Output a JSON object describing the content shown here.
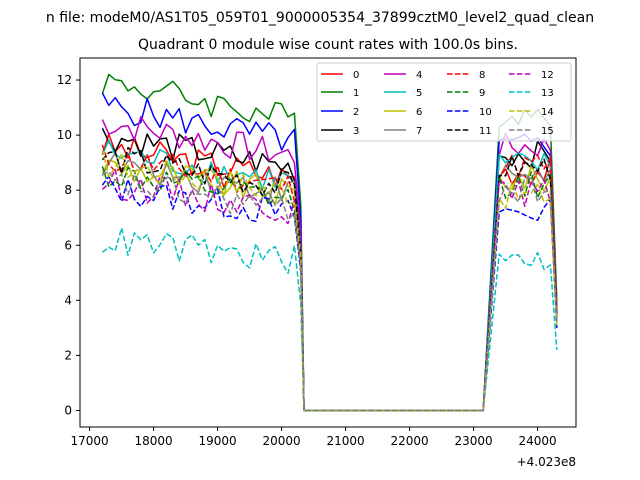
{
  "chart_data": {
    "type": "line",
    "suptitle": "n file: modeM0/AS1T05_059T01_9000005354_37899cztM0_level2_quad_clean",
    "title": "Quadrant 0 module wise count rates with 100.0s bins.",
    "xlabel": "",
    "ylabel": "",
    "x_offset_label": "+4.023e8",
    "xlim": [
      16850,
      24600
    ],
    "ylim": [
      -0.6,
      12.8
    ],
    "xticks": [
      17000,
      18000,
      19000,
      20000,
      21000,
      22000,
      23000,
      24000
    ],
    "yticks": [
      0,
      2,
      4,
      6,
      8,
      10,
      12
    ],
    "legend_location": "upper right",
    "legend_columns": 4,
    "series": [
      {
        "name": "0",
        "color": "#ff0000",
        "dash": "solid",
        "base_on": 9.6,
        "base_tail": 8.7,
        "tail_end": 3.5
      },
      {
        "name": "1",
        "color": "#008000",
        "dash": "solid",
        "base_on": 12.0,
        "base_tail": 10.8,
        "tail_end": 4.0
      },
      {
        "name": "2",
        "color": "#0000ff",
        "dash": "solid",
        "base_on": 11.1,
        "base_tail": 9.6,
        "tail_end": 3.6
      },
      {
        "name": "3",
        "color": "#000000",
        "dash": "solid",
        "base_on": 10.0,
        "base_tail": 9.3,
        "tail_end": 3.6
      },
      {
        "name": "4",
        "color": "#bf00bf",
        "dash": "solid",
        "base_on": 10.5,
        "base_tail": 9.6,
        "tail_end": 3.7
      },
      {
        "name": "5",
        "color": "#00bfbf",
        "dash": "solid",
        "base_on": 9.4,
        "base_tail": 8.9,
        "tail_end": 3.4
      },
      {
        "name": "6",
        "color": "#bfbf00",
        "dash": "solid",
        "base_on": 8.9,
        "base_tail": 8.4,
        "tail_end": 3.3
      },
      {
        "name": "7",
        "color": "#808080",
        "dash": "solid",
        "base_on": 9.0,
        "base_tail": 8.6,
        "tail_end": 3.3
      },
      {
        "name": "8",
        "color": "#ff0000",
        "dash": "dashed",
        "base_on": 9.2,
        "base_tail": 8.9,
        "tail_end": 3.4
      },
      {
        "name": "9",
        "color": "#008000",
        "dash": "dashed",
        "base_on": 8.6,
        "base_tail": 8.2,
        "tail_end": 3.2
      },
      {
        "name": "10",
        "color": "#0000ff",
        "dash": "dashed",
        "base_on": 8.1,
        "base_tail": 7.2,
        "tail_end": 3.0
      },
      {
        "name": "11",
        "color": "#000000",
        "dash": "dashed",
        "base_on": 9.2,
        "base_tail": 8.8,
        "tail_end": 3.4
      },
      {
        "name": "12",
        "color": "#bf00bf",
        "dash": "dashed",
        "base_on": 8.3,
        "base_tail": 7.9,
        "tail_end": 3.2
      },
      {
        "name": "13",
        "color": "#00bfbf",
        "dash": "dashed",
        "base_on": 6.2,
        "base_tail": 5.5,
        "tail_end": 2.2
      },
      {
        "name": "14",
        "color": "#bfbf00",
        "dash": "dashed",
        "base_on": 9.0,
        "base_tail": 7.8,
        "tail_end": 3.1
      },
      {
        "name": "15",
        "color": "#808080",
        "dash": "dashed",
        "base_on": 8.3,
        "base_tail": 8.0,
        "tail_end": 3.2
      }
    ],
    "segments": {
      "on1": [
        17200,
        20200
      ],
      "gap_zero": [
        20350,
        23200
      ],
      "on2": [
        23300,
        24300
      ],
      "bin_seconds": 100.0
    }
  }
}
